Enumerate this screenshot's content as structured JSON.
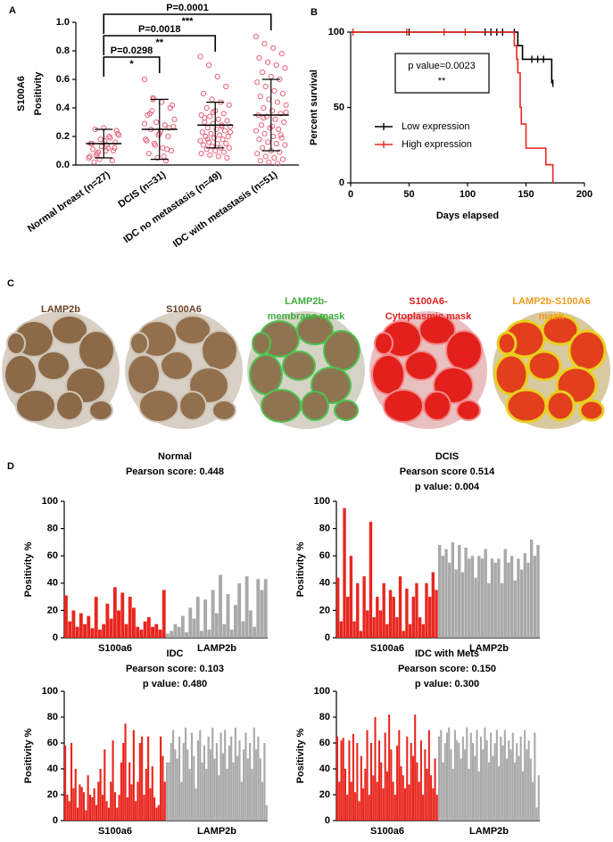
{
  "panel_labels": [
    "A",
    "B",
    "C",
    "D"
  ],
  "chart_data": [
    {
      "type": "strip",
      "ylabel": [
        "S100A6",
        "Positivity"
      ],
      "categories": [
        "Normal breast (n=27)",
        "DCIS (n=31)",
        "IDC no metastasis (n=49)",
        "IDC with metastasis (n=51)"
      ],
      "values": [
        [
          0.05,
          0.08,
          0.1,
          0.12,
          0.15,
          0.18,
          0.2,
          0.22,
          0.25,
          0.26,
          0.03,
          0.06,
          0.09,
          0.14,
          0.16,
          0.11,
          0.13,
          0.19,
          0.21,
          0.07,
          0.17,
          0.1,
          0.15,
          0.04,
          0.12,
          0.24,
          0.02
        ],
        [
          0.6,
          0.46,
          0.44,
          0.4,
          0.35,
          0.3,
          0.28,
          0.27,
          0.25,
          0.22,
          0.2,
          0.18,
          0.15,
          0.12,
          0.1,
          0.08,
          0.05,
          0.03,
          0.32,
          0.38,
          0.24,
          0.26,
          0.17,
          0.14,
          0.06,
          0.42,
          0.36,
          0.21,
          0.11,
          0.29,
          0.47
        ],
        [
          0.76,
          0.7,
          0.62,
          0.55,
          0.5,
          0.46,
          0.44,
          0.42,
          0.4,
          0.38,
          0.36,
          0.35,
          0.34,
          0.32,
          0.31,
          0.3,
          0.29,
          0.28,
          0.27,
          0.26,
          0.25,
          0.24,
          0.23,
          0.22,
          0.21,
          0.2,
          0.2,
          0.19,
          0.18,
          0.17,
          0.16,
          0.15,
          0.15,
          0.14,
          0.13,
          0.12,
          0.12,
          0.11,
          0.1,
          0.09,
          0.08,
          0.07,
          0.06,
          0.05,
          0.33,
          0.37,
          0.27,
          0.23,
          0.18
        ],
        [
          0.9,
          0.85,
          0.82,
          0.78,
          0.75,
          0.72,
          0.7,
          0.68,
          0.65,
          0.62,
          0.6,
          0.58,
          0.55,
          0.52,
          0.5,
          0.48,
          0.46,
          0.44,
          0.42,
          0.4,
          0.38,
          0.36,
          0.35,
          0.34,
          0.32,
          0.3,
          0.28,
          0.26,
          0.25,
          0.24,
          0.22,
          0.2,
          0.19,
          0.18,
          0.16,
          0.15,
          0.14,
          0.12,
          0.1,
          0.09,
          0.08,
          0.06,
          0.05,
          0.04,
          0.03,
          0.02,
          0.01,
          0.37,
          0.33,
          0.27,
          0.21
        ]
      ],
      "means": [
        0.15,
        0.25,
        0.28,
        0.35
      ],
      "sds": [
        0.1,
        0.21,
        0.16,
        0.25
      ],
      "color": "#e8627a",
      "comparisons": [
        {
          "label": "P=0.0298",
          "stars": "*"
        },
        {
          "label": "P=0.0018",
          "stars": "**"
        },
        {
          "label": "P=0.0001",
          "stars": "***"
        }
      ],
      "ylim": [
        0,
        1
      ],
      "yticks": [
        {
          "value": 0,
          "label": "0.0"
        },
        0.2,
        0.4,
        0.6,
        0.8,
        {
          "value": 1,
          "label": "1.0"
        }
      ]
    },
    {
      "type": "survival",
      "xlabel": "Days elapsed",
      "ylabel": "Percent survival",
      "series": [
        {
          "name": "Low expression",
          "color": "#000000",
          "x": [
            0,
            143,
            147,
            172
          ],
          "values": [
            100,
            91,
            82,
            66
          ],
          "censored": [
            50,
            115,
            120,
            125,
            130,
            140,
            155,
            160,
            165,
            173
          ]
        },
        {
          "name": "High expression",
          "color": "#e8261e",
          "x": [
            0,
            140,
            142,
            143,
            145,
            146,
            150,
            167,
            173
          ],
          "values": [
            100,
            91,
            82,
            73,
            50,
            39,
            23,
            12,
            0
          ],
          "censored": [
            2,
            48,
            80,
            98
          ]
        }
      ],
      "annotation": [
        "p value=0.0023",
        "**"
      ],
      "xlim": [
        0,
        200
      ],
      "xticks": [
        0,
        50,
        100,
        150,
        200
      ],
      "ylim": [
        0,
        100
      ],
      "yticks": [
        0,
        50,
        100
      ]
    },
    {
      "type": "bar",
      "title": "Normal",
      "subtitle": "Pearson score: 0.448",
      "ylabel": "Positivity %",
      "series": [
        {
          "name": "S100a6",
          "color": "#e8261e",
          "values": [
            31,
            12,
            20,
            8,
            18,
            10,
            16,
            7,
            30,
            6,
            10,
            25,
            14,
            37,
            20,
            33,
            10,
            30,
            22,
            8,
            6,
            12,
            15,
            8,
            10,
            6,
            35
          ]
        },
        {
          "name": "LAMP2b",
          "color": "#a9a9a9",
          "values": [
            3,
            5,
            10,
            8,
            16,
            4,
            22,
            14,
            30,
            5,
            28,
            6,
            35,
            18,
            46,
            10,
            32,
            6,
            24,
            40,
            12,
            45,
            20,
            8,
            43,
            35,
            43
          ]
        }
      ],
      "ylim": [
        0,
        100
      ],
      "yticks": [
        0,
        20,
        40,
        60,
        80,
        100
      ]
    },
    {
      "type": "bar",
      "title": "DCIS",
      "subtitle": "Pearson score 0.514",
      "note": "p value: 0.004",
      "ylabel": "Positivity %",
      "series": [
        {
          "name": "S100a6",
          "color": "#e8261e",
          "values": [
            44,
            12,
            95,
            30,
            60,
            12,
            40,
            5,
            45,
            20,
            85,
            15,
            30,
            20,
            40,
            10,
            35,
            30,
            15,
            45,
            5,
            36,
            10,
            30,
            40,
            15,
            10,
            40,
            30,
            48,
            35
          ]
        },
        {
          "name": "LAMP2b",
          "color": "#a9a9a9",
          "values": [
            68,
            60,
            65,
            55,
            70,
            50,
            68,
            48,
            66,
            58,
            60,
            44,
            60,
            58,
            65,
            40,
            58,
            55,
            58,
            40,
            65,
            55,
            60,
            42,
            58,
            50,
            62,
            55,
            72,
            60,
            68
          ]
        }
      ],
      "ylim": [
        0,
        100
      ],
      "yticks": [
        0,
        20,
        40,
        60,
        80,
        100
      ]
    },
    {
      "type": "bar",
      "title": "IDC",
      "subtitle": "Pearson score: 0.103",
      "note": "p value: 0.480",
      "ylabel": "Positivity %",
      "series": [
        {
          "name": "S100a6",
          "color": "#e8261e",
          "values": [
            58,
            20,
            15,
            60,
            25,
            40,
            10,
            28,
            26,
            22,
            8,
            35,
            20,
            18,
            25,
            12,
            30,
            40,
            20,
            55,
            15,
            10,
            30,
            62,
            22,
            10,
            20,
            45,
            60,
            75,
            18,
            45,
            28,
            70,
            15,
            30,
            60,
            65,
            20,
            40,
            65,
            25,
            42,
            18,
            10,
            12,
            65,
            50,
            30
          ]
        },
        {
          "name": "LAMP2b",
          "color": "#a9a9a9",
          "values": [
            45,
            45,
            60,
            70,
            55,
            48,
            65,
            30,
            60,
            72,
            55,
            40,
            68,
            50,
            25,
            62,
            70,
            45,
            58,
            40,
            65,
            55,
            72,
            48,
            60,
            35,
            68,
            52,
            70,
            40,
            58,
            65,
            45,
            72,
            50,
            62,
            30,
            55,
            68,
            48,
            60,
            40,
            72,
            55,
            65,
            48,
            30,
            60,
            12
          ]
        }
      ],
      "ylim": [
        0,
        100
      ],
      "yticks": [
        0,
        20,
        40,
        60,
        80,
        100
      ]
    },
    {
      "type": "bar",
      "title": "IDC with Mets",
      "subtitle": "Pearson score: 0.150",
      "note": "p value: 0.300",
      "ylabel": "Positivity %",
      "series": [
        {
          "name": "S100a6",
          "color": "#e8261e",
          "values": [
            65,
            30,
            62,
            64,
            40,
            20,
            62,
            30,
            67,
            22,
            60,
            15,
            50,
            25,
            40,
            70,
            20,
            60,
            35,
            80,
            30,
            62,
            45,
            25,
            68,
            38,
            82,
            55,
            30,
            20,
            58,
            70,
            42,
            35,
            25,
            65,
            28,
            60,
            50,
            82,
            45,
            30,
            62,
            20,
            55,
            40,
            70,
            35,
            25,
            48,
            20
          ]
        },
        {
          "name": "LAMP2b",
          "color": "#a9a9a9",
          "values": [
            65,
            70,
            45,
            60,
            68,
            72,
            55,
            40,
            70,
            62,
            60,
            48,
            65,
            55,
            72,
            40,
            68,
            60,
            50,
            70,
            38,
            65,
            55,
            72,
            62,
            45,
            68,
            50,
            60,
            70,
            42,
            65,
            58,
            70,
            48,
            62,
            55,
            68,
            45,
            60,
            50,
            65,
            38,
            70,
            55,
            62,
            48,
            30,
            68,
            10,
            35
          ]
        }
      ],
      "ylim": [
        0,
        100
      ],
      "yticks": [
        0,
        20,
        40,
        60,
        80,
        100
      ]
    }
  ],
  "panel_c": {
    "labels": [
      {
        "lines": [
          "LAMP2b"
        ],
        "color": "#6b4226"
      },
      {
        "lines": [
          "S100A6"
        ],
        "color": "#6b4226"
      },
      {
        "lines": [
          "LAMP2b-",
          "membrane mask"
        ],
        "color": "#3fae3f"
      },
      {
        "lines": [
          "S100A6-",
          "Cytoplasmic mask"
        ],
        "color": "#e02020"
      },
      {
        "lines": [
          "LAMP2b-S100A6",
          "mask"
        ],
        "color": "#f39a1e"
      }
    ]
  }
}
